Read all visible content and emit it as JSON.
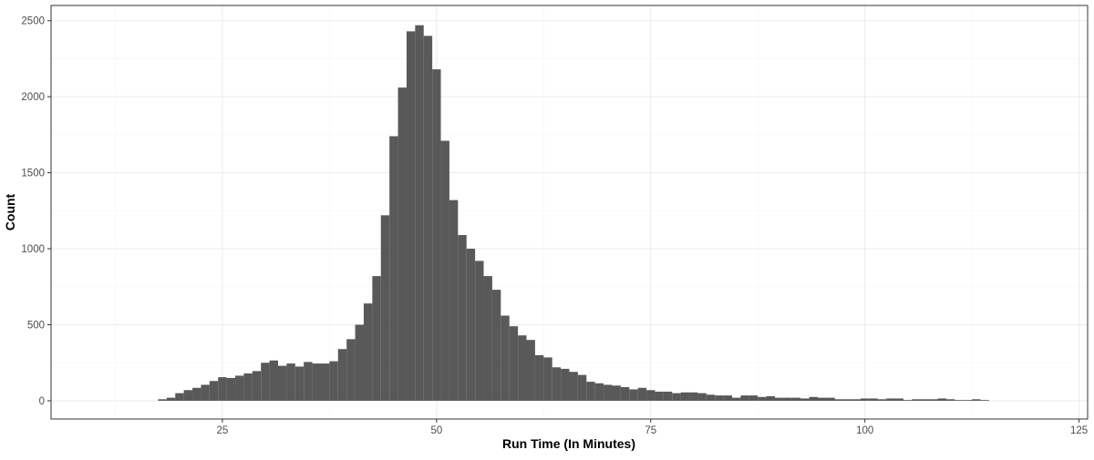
{
  "chart_data": {
    "type": "bar",
    "subtype": "histogram",
    "title": "",
    "xlabel": "Run Time (In Minutes)",
    "ylabel": "Count",
    "xlim": [
      5,
      126
    ],
    "ylim": [
      -120,
      2600
    ],
    "x_ticks": [
      25,
      50,
      75,
      100,
      125
    ],
    "y_ticks": [
      0,
      500,
      1000,
      1500,
      2000,
      2500
    ],
    "x_tick_labels": [
      "25",
      "50",
      "75",
      "100",
      "125"
    ],
    "y_tick_labels": [
      "0",
      "500",
      "1000",
      "1500",
      "2000",
      "2500"
    ],
    "bin_width": 1,
    "grid": true,
    "colors": {
      "bar": "#595959",
      "grid_major": "#ebebeb",
      "grid_minor": "#f5f5f5",
      "panel_border": "#333333",
      "axis_text": "#4d4d4d",
      "axis_title": "#000000"
    },
    "bins": [
      {
        "x": 18,
        "count": 10
      },
      {
        "x": 19,
        "count": 20
      },
      {
        "x": 20,
        "count": 50
      },
      {
        "x": 21,
        "count": 70
      },
      {
        "x": 22,
        "count": 85
      },
      {
        "x": 23,
        "count": 105
      },
      {
        "x": 24,
        "count": 130
      },
      {
        "x": 25,
        "count": 155
      },
      {
        "x": 26,
        "count": 150
      },
      {
        "x": 27,
        "count": 165
      },
      {
        "x": 28,
        "count": 180
      },
      {
        "x": 29,
        "count": 195
      },
      {
        "x": 30,
        "count": 250
      },
      {
        "x": 31,
        "count": 265
      },
      {
        "x": 32,
        "count": 230
      },
      {
        "x": 33,
        "count": 245
      },
      {
        "x": 34,
        "count": 225
      },
      {
        "x": 35,
        "count": 255
      },
      {
        "x": 36,
        "count": 245
      },
      {
        "x": 37,
        "count": 245
      },
      {
        "x": 38,
        "count": 260
      },
      {
        "x": 39,
        "count": 340
      },
      {
        "x": 40,
        "count": 405
      },
      {
        "x": 41,
        "count": 500
      },
      {
        "x": 42,
        "count": 640
      },
      {
        "x": 43,
        "count": 820
      },
      {
        "x": 44,
        "count": 1220
      },
      {
        "x": 45,
        "count": 1740
      },
      {
        "x": 46,
        "count": 2060
      },
      {
        "x": 47,
        "count": 2430
      },
      {
        "x": 48,
        "count": 2470
      },
      {
        "x": 49,
        "count": 2400
      },
      {
        "x": 50,
        "count": 2180
      },
      {
        "x": 51,
        "count": 1710
      },
      {
        "x": 52,
        "count": 1320
      },
      {
        "x": 53,
        "count": 1090
      },
      {
        "x": 54,
        "count": 1000
      },
      {
        "x": 55,
        "count": 920
      },
      {
        "x": 56,
        "count": 820
      },
      {
        "x": 57,
        "count": 730
      },
      {
        "x": 58,
        "count": 560
      },
      {
        "x": 59,
        "count": 490
      },
      {
        "x": 60,
        "count": 430
      },
      {
        "x": 61,
        "count": 400
      },
      {
        "x": 62,
        "count": 300
      },
      {
        "x": 63,
        "count": 285
      },
      {
        "x": 64,
        "count": 220
      },
      {
        "x": 65,
        "count": 210
      },
      {
        "x": 66,
        "count": 190
      },
      {
        "x": 67,
        "count": 170
      },
      {
        "x": 68,
        "count": 125
      },
      {
        "x": 69,
        "count": 115
      },
      {
        "x": 70,
        "count": 105
      },
      {
        "x": 71,
        "count": 100
      },
      {
        "x": 72,
        "count": 90
      },
      {
        "x": 73,
        "count": 75
      },
      {
        "x": 74,
        "count": 85
      },
      {
        "x": 75,
        "count": 70
      },
      {
        "x": 76,
        "count": 60
      },
      {
        "x": 77,
        "count": 60
      },
      {
        "x": 78,
        "count": 50
      },
      {
        "x": 79,
        "count": 55
      },
      {
        "x": 80,
        "count": 55
      },
      {
        "x": 81,
        "count": 50
      },
      {
        "x": 82,
        "count": 40
      },
      {
        "x": 83,
        "count": 35
      },
      {
        "x": 84,
        "count": 35
      },
      {
        "x": 85,
        "count": 20
      },
      {
        "x": 86,
        "count": 35
      },
      {
        "x": 87,
        "count": 35
      },
      {
        "x": 88,
        "count": 25
      },
      {
        "x": 89,
        "count": 30
      },
      {
        "x": 90,
        "count": 20
      },
      {
        "x": 91,
        "count": 20
      },
      {
        "x": 92,
        "count": 20
      },
      {
        "x": 93,
        "count": 15
      },
      {
        "x": 94,
        "count": 25
      },
      {
        "x": 95,
        "count": 20
      },
      {
        "x": 96,
        "count": 20
      },
      {
        "x": 97,
        "count": 10
      },
      {
        "x": 98,
        "count": 10
      },
      {
        "x": 99,
        "count": 10
      },
      {
        "x": 100,
        "count": 15
      },
      {
        "x": 101,
        "count": 15
      },
      {
        "x": 102,
        "count": 10
      },
      {
        "x": 103,
        "count": 15
      },
      {
        "x": 104,
        "count": 15
      },
      {
        "x": 105,
        "count": 5
      },
      {
        "x": 106,
        "count": 10
      },
      {
        "x": 107,
        "count": 10
      },
      {
        "x": 108,
        "count": 10
      },
      {
        "x": 109,
        "count": 15
      },
      {
        "x": 110,
        "count": 10
      },
      {
        "x": 111,
        "count": 5
      },
      {
        "x": 112,
        "count": 5
      },
      {
        "x": 113,
        "count": 10
      },
      {
        "x": 114,
        "count": 5
      }
    ]
  }
}
